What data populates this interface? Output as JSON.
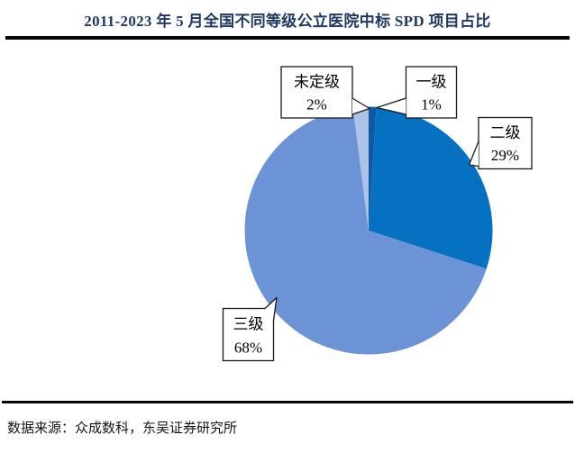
{
  "header": {
    "title": "2011-2023 年 5 月全国不同等级公立医院中标 SPD 项目占比"
  },
  "footer": {
    "source": "数据来源：众成数科，东吴证券研究所"
  },
  "colors": {
    "title_text": "#1F3864",
    "rule": "#060606",
    "callout_border": "#1a1a1a",
    "callout_background": "#FFFFFF"
  },
  "chart_data": {
    "type": "pie",
    "title": "2011-2023 年 5 月全国不同等级公立医院中标 SPD 项目占比",
    "start_angle": "top",
    "direction": "clockwise",
    "legend_position": "callout-labels",
    "slices": [
      {
        "label": "一级",
        "value": 1,
        "pct_label": "1%",
        "color": "#1058A4"
      },
      {
        "label": "二级",
        "value": 29,
        "pct_label": "29%",
        "color": "#0670C1"
      },
      {
        "label": "三级",
        "value": 68,
        "pct_label": "68%",
        "color": "#6B93D6"
      },
      {
        "label": "未定级",
        "value": 2,
        "pct_label": "2%",
        "color": "#AEC3E8"
      }
    ]
  }
}
